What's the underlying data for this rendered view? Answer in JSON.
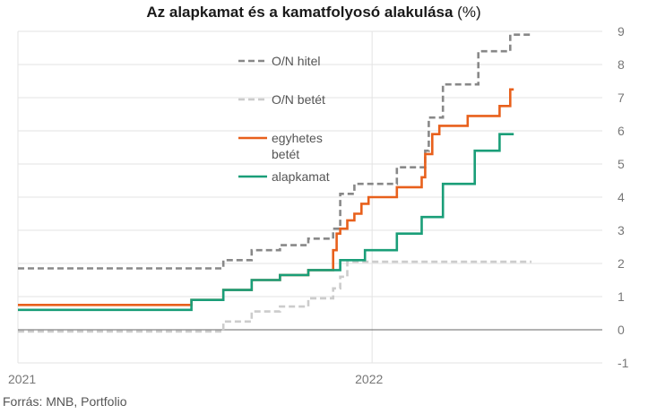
{
  "title": {
    "main": "Az alapkamat és a kamatfolyosó alakulása",
    "unit": "(%)"
  },
  "source": "Forrás: MNB, Portfolio",
  "chart_data": {
    "type": "line",
    "step": true,
    "title": "Az alapkamat és a kamatfolyosó alakulása (%)",
    "xlabel": "",
    "ylabel": "%",
    "xlim": [
      2021.0,
      2022.65
    ],
    "ylim": [
      -1,
      9
    ],
    "yticks": [
      -1,
      0,
      1,
      2,
      3,
      4,
      5,
      6,
      7,
      8,
      9
    ],
    "xticks": [
      {
        "value": 2021.0,
        "label": "2021"
      },
      {
        "value": 2022.0,
        "label": "2022"
      }
    ],
    "grid": true,
    "legend_position": "top-center",
    "series": [
      {
        "name": "O/N hitel",
        "color": "#888888",
        "dash": "dashed",
        "points": [
          [
            2021.0,
            1.85
          ],
          [
            2021.58,
            2.1
          ],
          [
            2021.66,
            2.4
          ],
          [
            2021.74,
            2.55
          ],
          [
            2021.82,
            2.75
          ],
          [
            2021.89,
            3.05
          ],
          [
            2021.91,
            4.1
          ],
          [
            2021.95,
            4.4
          ],
          [
            2022.07,
            4.9
          ],
          [
            2022.15,
            5.4
          ],
          [
            2022.16,
            6.4
          ],
          [
            2022.2,
            7.4
          ],
          [
            2022.3,
            8.4
          ],
          [
            2022.39,
            8.9
          ],
          [
            2022.45,
            8.9
          ]
        ]
      },
      {
        "name": "O/N betét",
        "color": "#cccccc",
        "dash": "dashed",
        "points": [
          [
            2021.0,
            -0.05
          ],
          [
            2021.58,
            0.25
          ],
          [
            2021.66,
            0.55
          ],
          [
            2021.74,
            0.7
          ],
          [
            2021.82,
            0.95
          ],
          [
            2021.89,
            1.25
          ],
          [
            2021.91,
            1.6
          ],
          [
            2021.93,
            2.05
          ],
          [
            2022.45,
            2.05
          ]
        ]
      },
      {
        "name": "egyhetes betét",
        "color": "#e8601c",
        "dash": "solid",
        "points": [
          [
            2021.0,
            0.75
          ],
          [
            2021.49,
            0.9
          ],
          [
            2021.58,
            1.2
          ],
          [
            2021.66,
            1.5
          ],
          [
            2021.74,
            1.65
          ],
          [
            2021.82,
            1.8
          ],
          [
            2021.89,
            2.4
          ],
          [
            2021.9,
            2.9
          ],
          [
            2021.91,
            3.05
          ],
          [
            2021.93,
            3.3
          ],
          [
            2021.95,
            3.5
          ],
          [
            2021.97,
            3.8
          ],
          [
            2021.99,
            4.0
          ],
          [
            2022.07,
            4.3
          ],
          [
            2022.14,
            4.6
          ],
          [
            2022.15,
            5.3
          ],
          [
            2022.17,
            5.9
          ],
          [
            2022.19,
            6.15
          ],
          [
            2022.27,
            6.45
          ],
          [
            2022.36,
            6.75
          ],
          [
            2022.39,
            7.25
          ],
          [
            2022.4,
            7.25
          ]
        ]
      },
      {
        "name": "alapkamat",
        "color": "#1a9e78",
        "dash": "solid",
        "points": [
          [
            2021.0,
            0.6
          ],
          [
            2021.49,
            0.9
          ],
          [
            2021.58,
            1.2
          ],
          [
            2021.66,
            1.5
          ],
          [
            2021.74,
            1.65
          ],
          [
            2021.82,
            1.8
          ],
          [
            2021.91,
            2.1
          ],
          [
            2021.98,
            2.4
          ],
          [
            2022.07,
            2.9
          ],
          [
            2022.14,
            3.4
          ],
          [
            2022.2,
            4.4
          ],
          [
            2022.29,
            5.4
          ],
          [
            2022.36,
            5.9
          ],
          [
            2022.4,
            5.9
          ]
        ]
      }
    ],
    "legend": [
      {
        "lines": [
          "O/N hitel"
        ]
      },
      {
        "lines": [
          "O/N betét"
        ]
      },
      {
        "lines": [
          "egyhetes",
          "betét"
        ]
      },
      {
        "lines": [
          "alapkamat"
        ]
      }
    ]
  }
}
